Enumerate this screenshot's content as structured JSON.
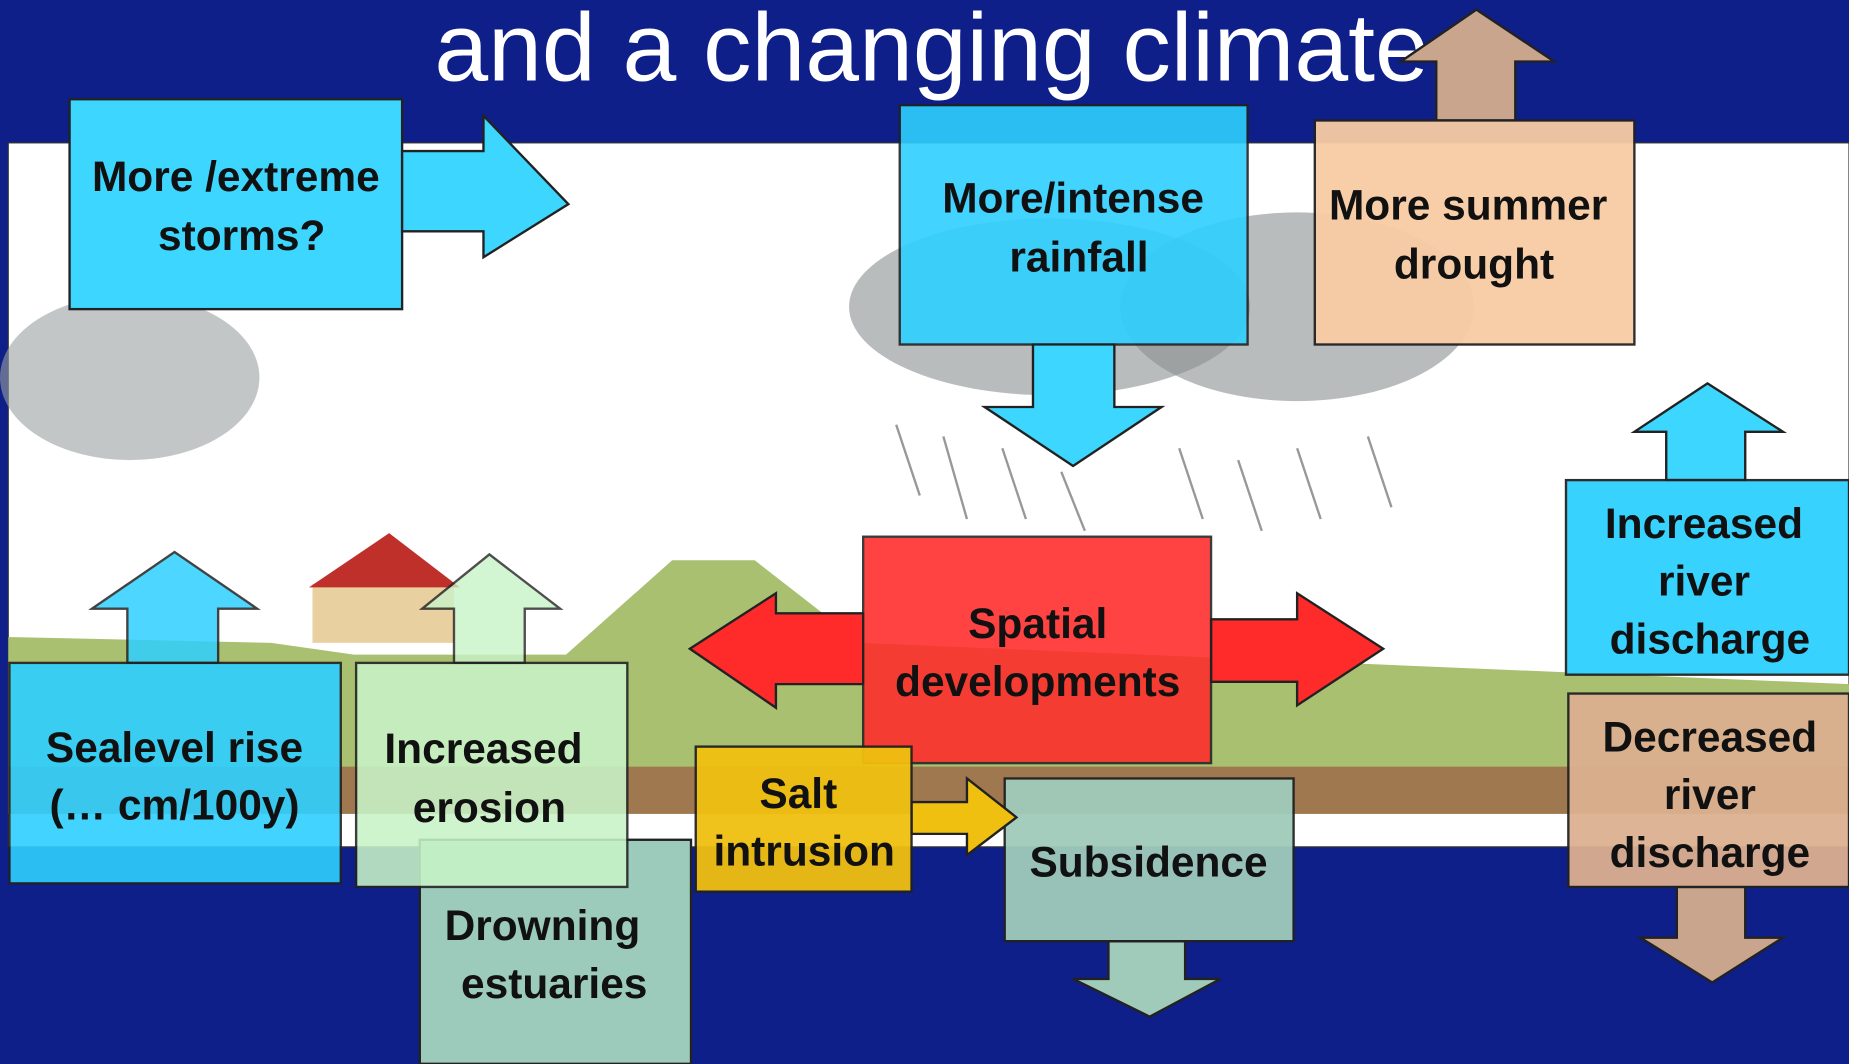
{
  "title": "and a changing climate",
  "boxes": [
    {
      "lines": [
        "More /extreme",
        "storms?"
      ]
    },
    {
      "lines": [
        "More/intense",
        "rainfall"
      ]
    },
    {
      "lines": [
        "More summer",
        "drought"
      ]
    },
    {
      "lines": [
        "Increased",
        "river",
        "discharge"
      ]
    },
    {
      "lines": [
        "Spatial",
        "developments"
      ]
    },
    {
      "lines": [
        "Decreased",
        "river",
        "discharge"
      ]
    },
    {
      "lines": [
        "Sealevel rise",
        "(… cm/100y)"
      ]
    },
    {
      "lines": [
        "Increased",
        "erosion"
      ]
    },
    {
      "lines": [
        "Salt",
        "intrusion"
      ]
    },
    {
      "lines": [
        "Subsidence"
      ]
    },
    {
      "lines": [
        "Drowning",
        "estuaries"
      ]
    }
  ]
}
